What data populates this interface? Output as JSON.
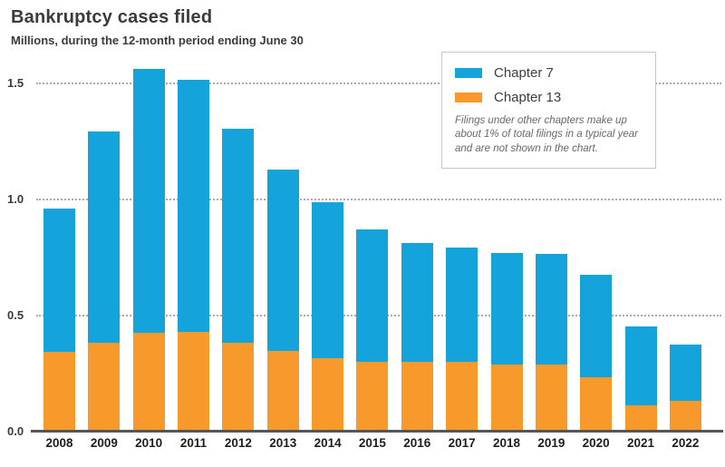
{
  "title": "Bankruptcy cases filed",
  "subtitle": "Millions, during the 12-month period ending June 30",
  "legend": {
    "items": [
      {
        "label": "Chapter 7",
        "color": "#14A3DA"
      },
      {
        "label": "Chapter 13",
        "color": "#F8992B"
      }
    ],
    "note": "Filings under other chapters make up about 1% of total filings in a typical year and are not shown in the chart."
  },
  "axis": {
    "line_color": "#55565a",
    "grid_color": "#ababab",
    "tick_color": "#3a3a3a"
  },
  "chart_data": {
    "type": "bar",
    "stacked": true,
    "title": "Bankruptcy cases filed",
    "subtitle": "Millions, during the 12-month period ending June 30",
    "xlabel": "",
    "ylabel": "Millions",
    "categories": [
      "2008",
      "2009",
      "2010",
      "2011",
      "2012",
      "2013",
      "2014",
      "2015",
      "2016",
      "2017",
      "2018",
      "2019",
      "2020",
      "2021",
      "2022"
    ],
    "series": [
      {
        "name": "Chapter 7",
        "color": "#14A3DA",
        "values": [
          0.617,
          0.91,
          1.137,
          1.086,
          0.922,
          0.781,
          0.672,
          0.57,
          0.511,
          0.492,
          0.481,
          0.476,
          0.441,
          0.338,
          0.242
        ]
      },
      {
        "name": "Chapter 13",
        "color": "#F8992B",
        "values": [
          0.344,
          0.383,
          0.426,
          0.43,
          0.383,
          0.348,
          0.316,
          0.301,
          0.301,
          0.301,
          0.289,
          0.289,
          0.234,
          0.115,
          0.133
        ]
      }
    ],
    "totals": [
      0.961,
      1.293,
      1.563,
      1.516,
      1.305,
      1.129,
      0.988,
      0.871,
      0.812,
      0.793,
      0.77,
      0.765,
      0.675,
      0.453,
      0.375
    ],
    "stack_order_bottom_to_top": [
      "Chapter 13",
      "Chapter 7"
    ],
    "ylim": [
      0,
      1.6
    ],
    "yticks": [
      0.0,
      0.5,
      1.0,
      1.5
    ],
    "ytick_labels": [
      "0.0",
      "0.5",
      "1.0",
      "1.5"
    ],
    "gridline_values": [
      0.5,
      1.0,
      1.5
    ],
    "grid": "dotted-horizontal",
    "legend_position": "top-right",
    "note": "Filings under other chapters make up about 1% of total filings in a typical year and are not shown in the chart."
  }
}
